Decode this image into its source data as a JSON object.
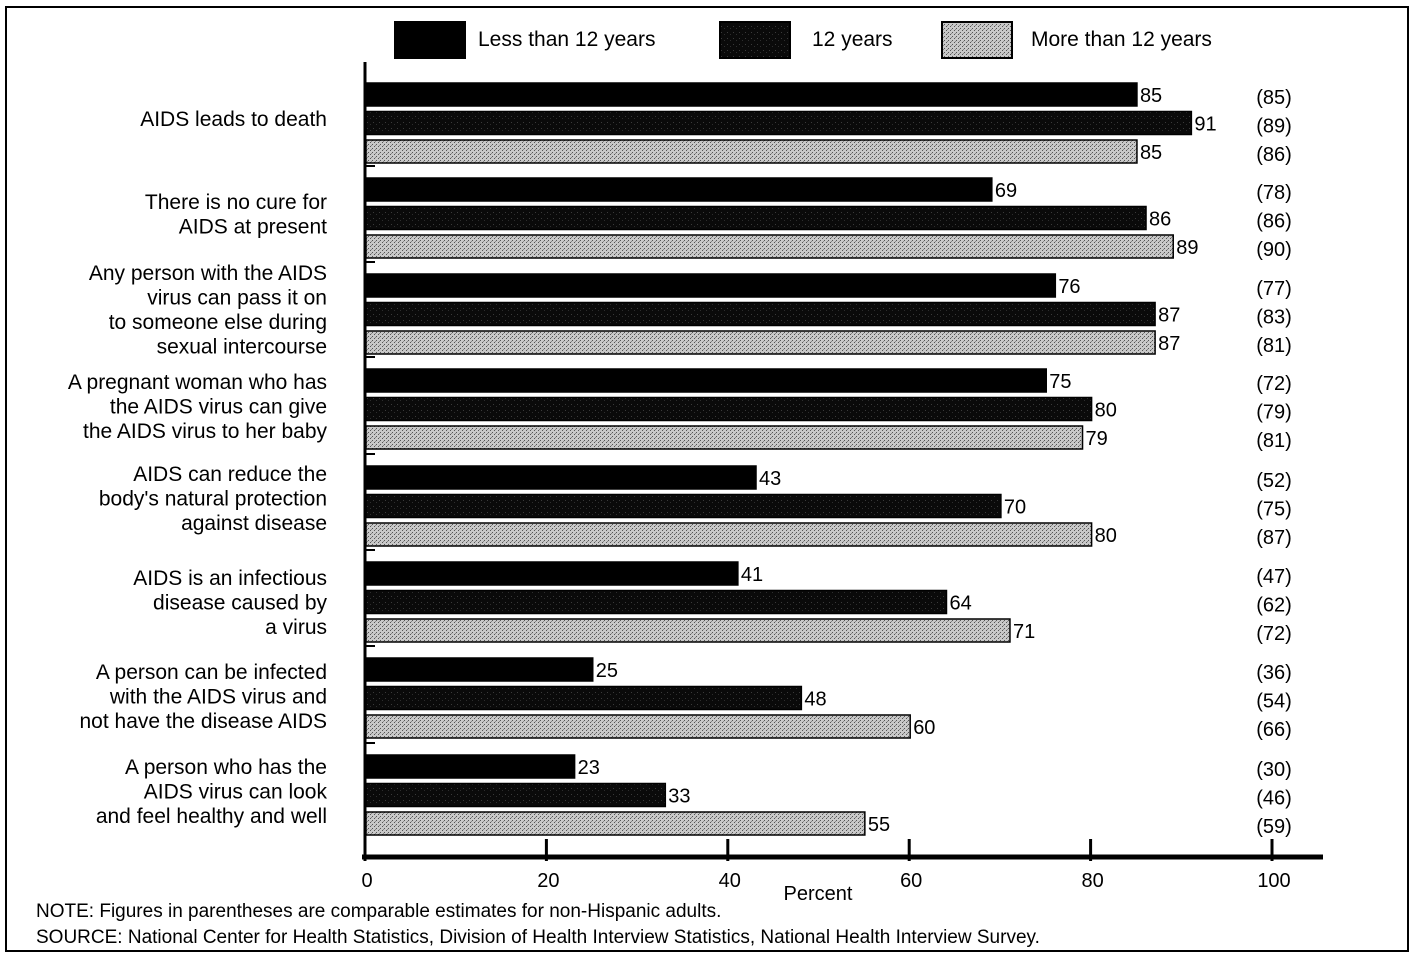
{
  "chart_data": {
    "type": "bar",
    "orientation": "horizontal",
    "categories": [
      [
        "AIDS leads to death"
      ],
      [
        "There is no cure for",
        "AIDS at present"
      ],
      [
        "Any person with the AIDS",
        "virus can pass it on",
        "to someone else during",
        "sexual intercourse"
      ],
      [
        "A pregnant woman who has",
        "the AIDS virus can give",
        "the AIDS virus to her baby"
      ],
      [
        "AIDS can reduce the",
        "body's natural protection",
        "against disease"
      ],
      [
        "AIDS is an infectious",
        "disease caused by",
        "a virus"
      ],
      [
        "A person can be infected",
        "with the AIDS virus and",
        "not have the disease AIDS"
      ],
      [
        "A person who has the",
        "AIDS virus can look",
        "and feel healthy and well"
      ]
    ],
    "series": [
      {
        "name": "Less than 12 years",
        "color": "#000000",
        "pattern": "solid",
        "values": [
          85,
          69,
          76,
          75,
          43,
          41,
          25,
          23
        ],
        "comparable": [
          "(85)",
          "(78)",
          "(77)",
          "(72)",
          "(52)",
          "(47)",
          "(36)",
          "(30)"
        ]
      },
      {
        "name": "12 years",
        "color": "#111111",
        "pattern": "dark-stipple",
        "values": [
          91,
          86,
          87,
          80,
          70,
          64,
          48,
          33
        ],
        "comparable": [
          "(89)",
          "(86)",
          "(83)",
          "(79)",
          "(75)",
          "(62)",
          "(54)",
          "(46)"
        ]
      },
      {
        "name": "More than 12 years",
        "color": "#bdbdbd",
        "pattern": "light-stipple",
        "values": [
          85,
          89,
          87,
          79,
          80,
          71,
          60,
          55
        ],
        "comparable": [
          "(86)",
          "(90)",
          "(81)",
          "(81)",
          "(87)",
          "(72)",
          "(66)",
          "(59)"
        ]
      }
    ],
    "xlabel": "Percent",
    "xlim": [
      0,
      100
    ],
    "xticks": [
      0,
      20,
      40,
      60,
      80,
      100
    ],
    "legend_position": "top"
  },
  "notes": {
    "note": "NOTE:  Figures in parentheses are comparable estimates for non-Hispanic adults.",
    "source": "SOURCE: National Center for Health Statistics, Division of Health Interview Statistics, National Health Interview Survey."
  }
}
